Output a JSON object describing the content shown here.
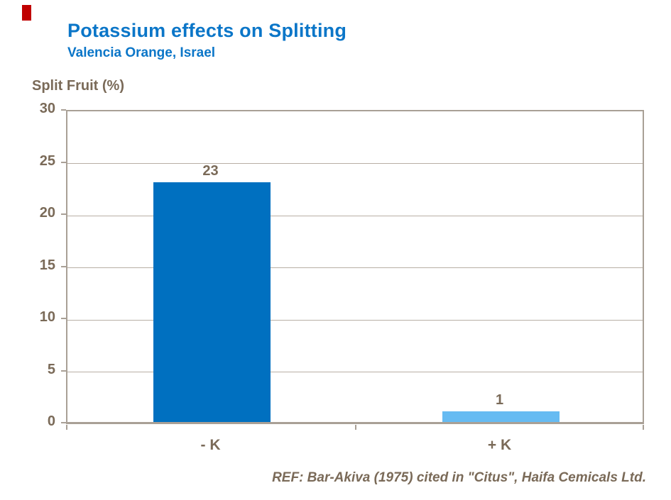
{
  "header": {
    "title": "Potassium effects on Splitting",
    "subtitle": "Valencia Orange, Israel"
  },
  "chart_data": {
    "type": "bar",
    "categories": [
      "- K",
      "+ K"
    ],
    "values": [
      23,
      1
    ],
    "data_labels": [
      "23",
      "1"
    ],
    "title": "Potassium effects on Splitting",
    "subtitle": "Valencia Orange, Israel",
    "xlabel": "",
    "ylabel": "Split Fruit (%)",
    "ylim": [
      0,
      30
    ],
    "ytick_step": 5,
    "ytick_labels": [
      "0",
      "5",
      "10",
      "15",
      "20",
      "25",
      "30"
    ],
    "grid": true,
    "legend": "none",
    "bar_colors": [
      "#0070C0",
      "#66BBF2"
    ]
  },
  "footer": {
    "reference": "REF: Bar-Akiva (1975) cited in \"Citus\", Haifa Cemicals Ltd."
  },
  "colors": {
    "accent_blue": "#0B76C8",
    "bar_dark": "#0070C0",
    "bar_light": "#66BBF2",
    "text_brown": "#7A6A58",
    "axis_line": "#A9A096",
    "gridline": "#B8AFA5",
    "red_marker": "#C00000",
    "background": "#FFFFFF"
  }
}
